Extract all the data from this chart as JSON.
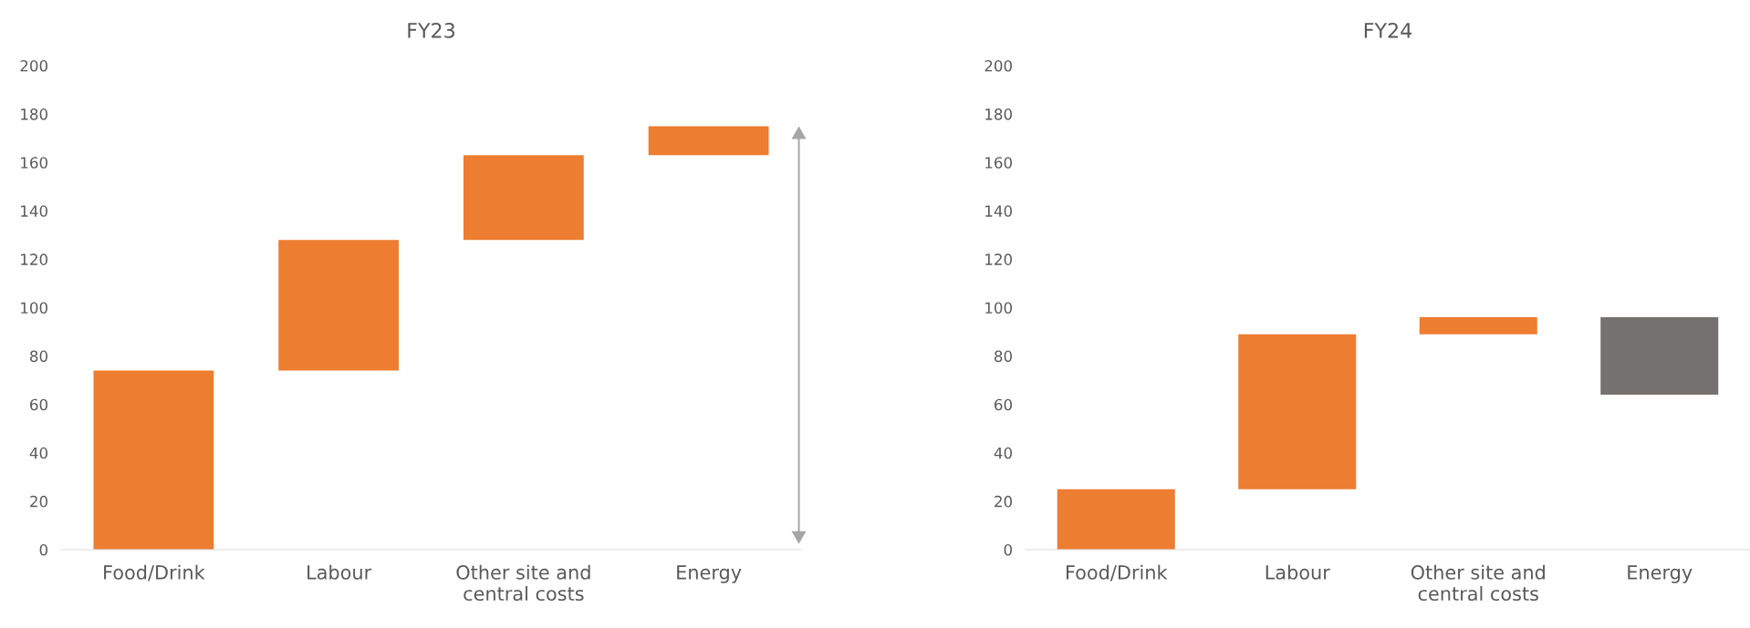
{
  "chart_data": [
    {
      "type": "bar",
      "title": "FY23",
      "categories": [
        "Food/Drink",
        "Labour",
        "Other site and\ncentral costs",
        "Energy"
      ],
      "values": [
        74,
        54,
        35,
        12
      ],
      "base": [
        0,
        74,
        128,
        163
      ],
      "colors": [
        "#ed7d31",
        "#ed7d31",
        "#ed7d31",
        "#ed7d31"
      ],
      "ylim": [
        0,
        200
      ],
      "yticks": [
        0,
        20,
        40,
        60,
        80,
        100,
        120,
        140,
        160,
        180,
        200
      ],
      "grid": false
    },
    {
      "type": "bar",
      "title": "FY24",
      "categories": [
        "Food/Drink",
        "Labour",
        "Other site and\ncentral costs",
        "Energy"
      ],
      "values": [
        25,
        64,
        7,
        -32
      ],
      "base": [
        0,
        25,
        89,
        96
      ],
      "colors": [
        "#ed7d31",
        "#ed7d31",
        "#ed7d31",
        "#757170"
      ],
      "ylim": [
        0,
        200
      ],
      "yticks": [
        0,
        20,
        40,
        60,
        80,
        100,
        120,
        140,
        160,
        180,
        200
      ],
      "grid": false
    }
  ]
}
